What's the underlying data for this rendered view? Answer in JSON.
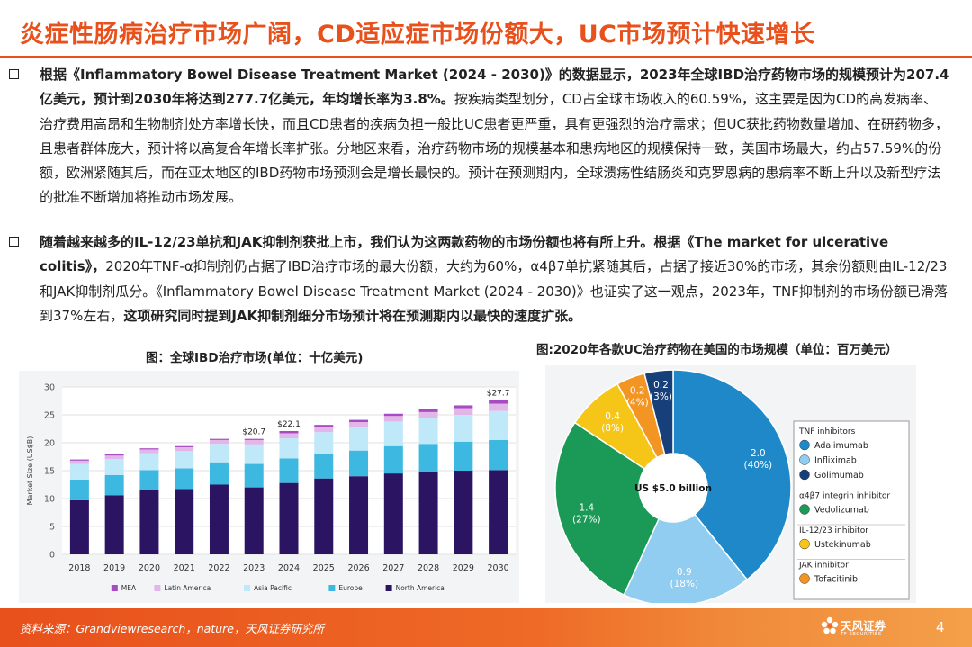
{
  "page": {
    "title": "炎症性肠病治疗市场广阔，CD适应症市场份额大，UC市场预计快速增长",
    "bullet1": "根据《Inflammatory Bowel Disease Treatment Market (2024 - 2030)》的数据显示，2023年全球IBD治疗药物市场的规模预计为207.4亿美元，预计到2030年将达到277.7亿美元，年均增长率为3.8%。按疾病类型划分，CD占全球市场收入的60.59%，这主要是因为CD的高发病率、治疗费用高昂和生物制剂处方率增长快，而且CD患者的疾病负担一般比UC患者更严重，具有更强烈的治疗需求；但UC获批药物数量增加、在研药物多，且患者群体庞大，预计将以高复合年增长率扩张。分地区来看，治疗药物市场的规模基本和患病地区的规模保持一致，美国市场最大，约占57.59%的份额，欧洲紧随其后，而在亚太地区的IBD药物市场预测会是增长最快的。预计在预测期内，全球溃疡性结肠炎和克罗恩病的患病率不断上升以及新型疗法的批准不断增加将推动市场发展。",
    "bullet1_bold": "根据《Inflammatory Bowel Disease Treatment Market (2024 - 2030)》的数据显示，2023年全球IBD治疗药物市场的规模预计为207.4亿美元，预计到2030年将达到277.7亿美元，年均增长率为3.8%。",
    "bullet1_rest": "按疾病类型划分，CD占全球市场收入的60.59%，这主要是因为CD的高发病率、治疗费用高昂和生物制剂处方率增长快，而且CD患者的疾病负担一般比UC患者更严重，具有更强烈的治疗需求；但UC获批药物数量增加、在研药物多，且患者群体庞大，预计将以高复合年增长率扩张。分地区来看，治疗药物市场的规模基本和患病地区的规模保持一致，美国市场最大，约占57.59%的份额，欧洲紧随其后，而在亚太地区的IBD药物市场预测会是增长最快的。预计在预测期内，全球溃疡性结肠炎和克罗恩病的患病率不断上升以及新型疗法的批准不断增加将推动市场发展。",
    "bullet2_bold_a": "随着越来越多的IL-12/23单抗和JAK抑制剂获批上市，我们认为这两款药物的市场份额也将有所上升。根据《The market for ulcerative colitis》，",
    "bullet2_mid": "2020年TNF-α抑制剂仍占据了IBD治疗市场的最大份额，大约为60%，α4β7单抗紧随其后，占据了接近30%的市场，其余份额则由IL-12/23和JAK抑制剂瓜分。《Inflammatory Bowel Disease Treatment Market (2024 - 2030)》也证实了这一观点，2023年，TNF抑制剂的市场份额已滑落到37%左右，",
    "bullet2_bold_b": "这项研究同时提到JAK抑制剂细分市场预计将在预测期内以最快的速度扩张。",
    "caption_left": "图：全球IBD治疗市场(单位：十亿美元)",
    "caption_right": "图:2020年各款UC治疗药物在美国的市场规模（单位：百万美元）",
    "source": "资料来源：Grandviewresearch，nature，天风证券研究所",
    "logo_zh": "天风证券",
    "logo_en": "TF SECURITIES",
    "page_number": "4"
  },
  "chart_data": [
    {
      "type": "bar",
      "stacked": true,
      "ylabel": "Market Size (US$B)",
      "ylim": [
        0,
        30
      ],
      "yticks": [
        0,
        5,
        10,
        15,
        20,
        25,
        30
      ],
      "grid": true,
      "legend_position": "bottom",
      "categories": [
        "2018",
        "2019",
        "2020",
        "2021",
        "2022",
        "2023",
        "2024",
        "2025",
        "2026",
        "2027",
        "2028",
        "2029",
        "2030"
      ],
      "series": [
        {
          "name": "North America",
          "color": "#2b1563",
          "values": [
            9.7,
            10.6,
            11.5,
            11.7,
            12.5,
            12.0,
            12.8,
            13.6,
            14.0,
            14.5,
            14.8,
            15.0,
            15.1
          ]
        },
        {
          "name": "Europe",
          "color": "#3db8e0",
          "values": [
            3.7,
            3.6,
            3.6,
            3.7,
            4.0,
            4.2,
            4.4,
            4.4,
            4.6,
            4.9,
            5.0,
            5.2,
            5.4
          ]
        },
        {
          "name": "Asia Pacific",
          "color": "#bfe8f8",
          "values": [
            2.8,
            2.9,
            3.0,
            3.1,
            3.3,
            3.5,
            3.6,
            3.9,
            4.2,
            4.4,
            4.6,
            4.8,
            5.2
          ]
        },
        {
          "name": "Latin America",
          "color": "#e2b7e8",
          "values": [
            0.6,
            0.6,
            0.7,
            0.7,
            0.7,
            0.8,
            0.9,
            0.9,
            0.9,
            1.0,
            1.1,
            1.2,
            1.3
          ]
        },
        {
          "name": "MEA",
          "color": "#a64bc4",
          "values": [
            0.2,
            0.2,
            0.2,
            0.2,
            0.2,
            0.2,
            0.4,
            0.4,
            0.4,
            0.4,
            0.5,
            0.5,
            0.7
          ]
        }
      ],
      "annotations": [
        {
          "category": "2023",
          "text": "$20.7"
        },
        {
          "category": "2024",
          "text": "$22.1"
        },
        {
          "category": "2030",
          "text": "$27.7"
        }
      ]
    },
    {
      "type": "pie",
      "donut": true,
      "center_label": "US $5.0 billion",
      "slices": [
        {
          "name": "Adalimumab",
          "value": 2.0,
          "label": "2.0",
          "pct": "(40%)",
          "color": "#1e88c9"
        },
        {
          "name": "Infliximab",
          "value": 0.9,
          "label": "0.9",
          "pct": "(18%)",
          "color": "#90cdf0"
        },
        {
          "name": "Vedolizumab",
          "value": 1.4,
          "label": "1.4",
          "pct": "(27%)",
          "color": "#1a9a56"
        },
        {
          "name": "Ustekinumab",
          "value": 0.4,
          "label": "0.4",
          "pct": "(8%)",
          "color": "#f5c518"
        },
        {
          "name": "Tofacitinib",
          "value": 0.2,
          "label": "0.2",
          "pct": "(4%)",
          "color": "#f39523"
        },
        {
          "name": "Golimumab",
          "value": 0.2,
          "label": "0.2",
          "pct": "(3%)",
          "color": "#17407a"
        }
      ],
      "legend_position": "right",
      "legend": [
        {
          "group": "TNF inhibitors",
          "items": [
            "Adalimumab",
            "Infliximab",
            "Golimumab"
          ]
        },
        {
          "group": "α4β7 integrin inhibitor",
          "items": [
            "Vedolizumab"
          ]
        },
        {
          "group": "IL-12/23 inhibitor",
          "items": [
            "Ustekinumab"
          ]
        },
        {
          "group": "JAK inhibitor",
          "items": [
            "Tofacitinib"
          ]
        }
      ]
    }
  ]
}
